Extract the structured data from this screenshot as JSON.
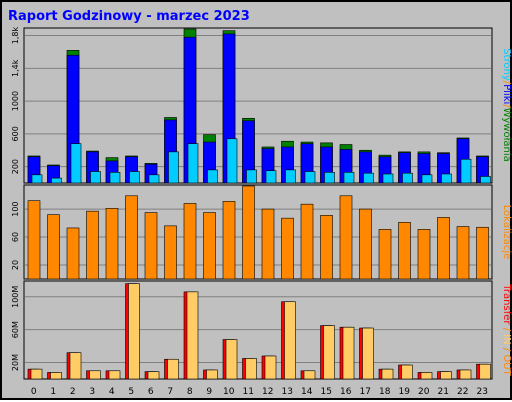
{
  "title": "Raport Godzinowy -  marzec 2023",
  "colors": {
    "background": "#c0c0c0",
    "title": "#0000ff",
    "strony": "#00ccff",
    "pliki": "#0000ff",
    "wywolania": "#008000",
    "lokalizacje": "#ff8800",
    "transfer": "#ff0000",
    "in": "#ffcc66",
    "out": "#ff8800"
  },
  "right_labels": {
    "top": [
      {
        "text": "Strony",
        "color_key": "strony"
      },
      {
        "text": "/",
        "color_key": "lokalizacje"
      },
      {
        "text": "Pliki",
        "color_key": "pliki"
      },
      {
        "text": "/",
        "color_key": "lokalizacje"
      },
      {
        "text": "Wywołania",
        "color_key": "wywolania"
      }
    ],
    "middle": [
      {
        "text": "Lokalizacje",
        "color_key": "lokalizacje"
      }
    ],
    "bottom": [
      {
        "text": "Transfer",
        "color_key": "transfer"
      },
      {
        "text": " / ",
        "color_key": "out"
      },
      {
        "text": "IN",
        "color_key": "in"
      },
      {
        "text": " / ",
        "color_key": "out"
      },
      {
        "text": "OUT",
        "color_key": "out"
      }
    ]
  },
  "chart_data": [
    {
      "type": "bar",
      "name": "hits-files-pages",
      "categories": [
        "0",
        "1",
        "2",
        "3",
        "4",
        "5",
        "6",
        "7",
        "8",
        "9",
        "10",
        "11",
        "12",
        "13",
        "14",
        "15",
        "16",
        "17",
        "18",
        "19",
        "20",
        "21",
        "22",
        "23"
      ],
      "y_ticks": [
        "200",
        "600",
        "1000",
        "1,4k",
        "1,8k"
      ],
      "y_tick_values": [
        200,
        600,
        1000,
        1400,
        1800
      ],
      "ylim": [
        0,
        1880
      ],
      "series": [
        {
          "name": "Wywołania",
          "values": [
            330,
            220,
            1620,
            390,
            310,
            330,
            240,
            800,
            1880,
            590,
            1860,
            790,
            440,
            510,
            500,
            490,
            470,
            400,
            340,
            380,
            380,
            370,
            550,
            330
          ]
        },
        {
          "name": "Pliki",
          "values": [
            320,
            210,
            1560,
            380,
            270,
            320,
            230,
            770,
            1780,
            500,
            1820,
            760,
            420,
            440,
            480,
            440,
            410,
            380,
            320,
            370,
            360,
            360,
            540,
            320
          ]
        },
        {
          "name": "Strony",
          "values": [
            100,
            60,
            480,
            140,
            130,
            140,
            100,
            380,
            480,
            160,
            540,
            160,
            150,
            160,
            140,
            130,
            130,
            120,
            110,
            120,
            100,
            110,
            290,
            80
          ]
        }
      ]
    },
    {
      "type": "bar",
      "name": "locations",
      "categories": [
        "0",
        "1",
        "2",
        "3",
        "4",
        "5",
        "6",
        "7",
        "8",
        "9",
        "10",
        "11",
        "12",
        "13",
        "14",
        "15",
        "16",
        "17",
        "18",
        "19",
        "20",
        "21",
        "22",
        "23"
      ],
      "y_ticks": [
        "20",
        "60",
        "100"
      ],
      "y_tick_values": [
        20,
        60,
        100
      ],
      "ylim": [
        0,
        133
      ],
      "series": [
        {
          "name": "Lokalizacje",
          "values": [
            112,
            92,
            73,
            97,
            101,
            119,
            95,
            76,
            108,
            95,
            111,
            133,
            100,
            87,
            107,
            91,
            119,
            100,
            71,
            81,
            71,
            88,
            75,
            74
          ]
        }
      ]
    },
    {
      "type": "bar",
      "name": "transfer",
      "categories": [
        "0",
        "1",
        "2",
        "3",
        "4",
        "5",
        "6",
        "7",
        "8",
        "9",
        "10",
        "11",
        "12",
        "13",
        "14",
        "15",
        "16",
        "17",
        "18",
        "19",
        "20",
        "21",
        "22",
        "23"
      ],
      "y_ticks": [
        "20M",
        "60M",
        "100M"
      ],
      "y_tick_values": [
        20,
        60,
        100
      ],
      "ylim": [
        0,
        118
      ],
      "series": [
        {
          "name": "Transfer",
          "values": [
            12,
            8,
            32,
            10,
            10,
            116,
            9,
            24,
            106,
            11,
            48,
            25,
            28,
            94,
            10,
            65,
            63,
            62,
            12,
            17,
            8,
            9,
            11,
            18
          ]
        }
      ]
    }
  ]
}
